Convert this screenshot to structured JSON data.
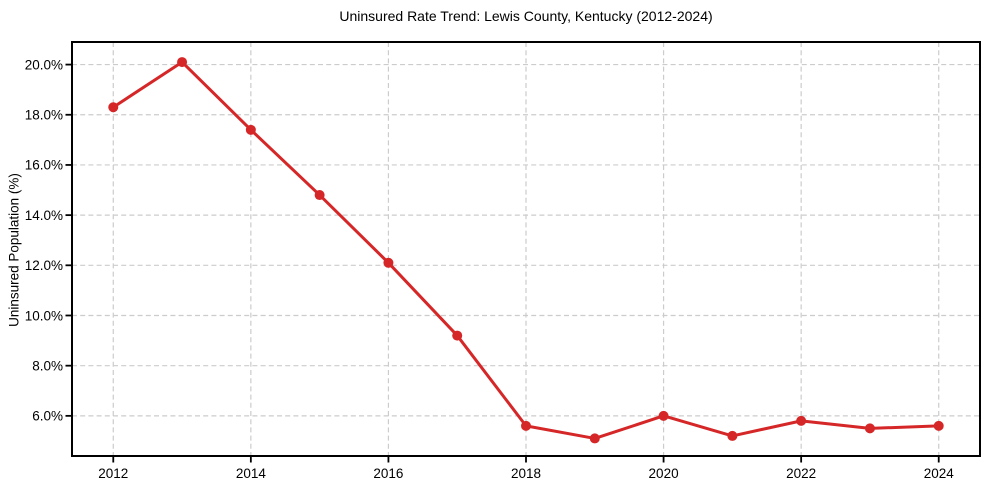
{
  "chart": {
    "title": "Uninsured Rate Trend: Lewis County, Kentucky (2012-2024)",
    "ylabel": "Uninsured Population (%)"
  },
  "chart_data": {
    "type": "line",
    "title": "Uninsured Rate Trend: Lewis County, Kentucky (2012-2024)",
    "xlabel": "",
    "ylabel": "Uninsured Population (%)",
    "x": [
      2012,
      2013,
      2014,
      2015,
      2016,
      2017,
      2018,
      2019,
      2020,
      2021,
      2022,
      2023,
      2024
    ],
    "values": [
      18.3,
      20.1,
      17.4,
      14.8,
      12.1,
      9.2,
      5.6,
      5.1,
      6.0,
      5.2,
      5.8,
      5.5,
      5.6
    ],
    "unit": "%",
    "x_ticks": [
      2012,
      2014,
      2016,
      2018,
      2020,
      2022,
      2024
    ],
    "x_tick_labels": [
      "2012",
      "2014",
      "2016",
      "2018",
      "2020",
      "2022",
      "2024"
    ],
    "y_ticks": [
      6,
      8,
      10,
      12,
      14,
      16,
      18,
      20
    ],
    "y_tick_labels": [
      "6.0%",
      "8.0%",
      "10.0%",
      "12.0%",
      "14.0%",
      "16.0%",
      "18.0%",
      "20.0%"
    ],
    "xlim": [
      2011.4,
      2024.6
    ],
    "ylim": [
      4.4,
      20.9
    ],
    "grid": true,
    "grid_style": "dashed",
    "legend": "none",
    "marker": "o",
    "colors": {
      "line": "#d62728",
      "marker": "#d62728",
      "grid": "#cccccc",
      "spine": "#000000",
      "text": "#000000",
      "background": "#ffffff"
    }
  }
}
